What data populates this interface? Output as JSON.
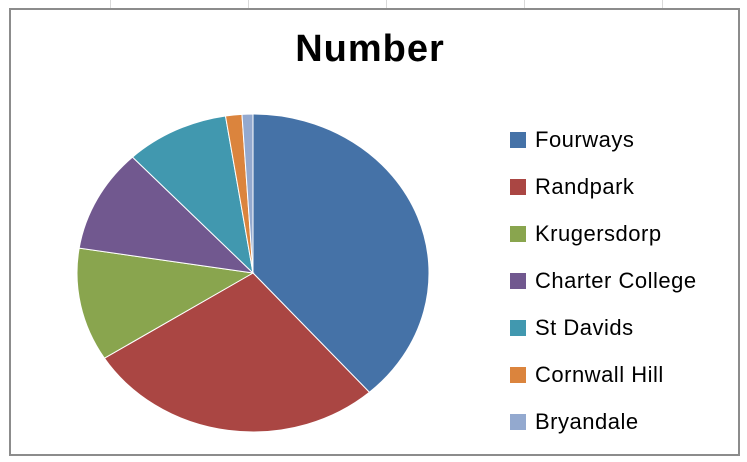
{
  "chart_data": {
    "type": "pie",
    "title": "Number",
    "legend_position": "right",
    "categories": [
      "Fourways",
      "Randpark",
      "Krugersdorp",
      "Charter College",
      "St Davids",
      "Cornwall Hill",
      "Bryandale"
    ],
    "values": [
      38.5,
      27.5,
      11.5,
      10.5,
      9.5,
      1.5,
      1.0
    ],
    "colors": [
      "#4572a7",
      "#aa4643",
      "#89a54e",
      "#71588f",
      "#4198af",
      "#db843d",
      "#93a9cf"
    ],
    "labels_shown": false
  }
}
